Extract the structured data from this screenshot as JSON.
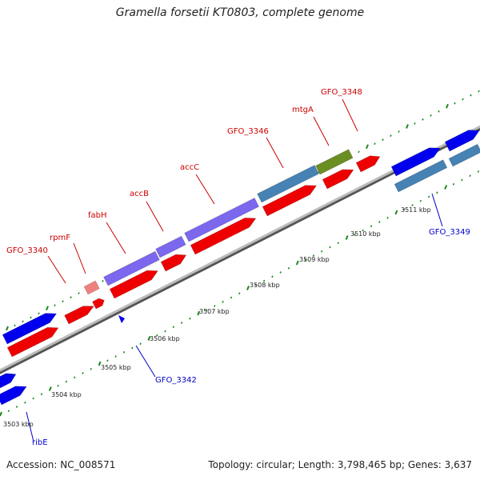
{
  "title": "Gramella forsetii KT0803, complete genome",
  "footer": {
    "accession": "Accession: NC_008571",
    "summary": "Topology: circular; Length: 3,798,465 bp; Genes: 3,637"
  },
  "colors": {
    "backbone": "#8c8c8c",
    "cds_forward": "#0000ee",
    "cds_reverse": "#ee0000",
    "gene_blue": "#4682b4",
    "gene_purple": "#7b68ee",
    "gene_olive": "#6b8e23",
    "gene_pink": "#f08080",
    "tick": "#1a8a1a",
    "label_top": "#cc0000",
    "label_bottom": "#0000cc"
  },
  "kbp_ticks": [
    "3503 kbp",
    "3504 kbp",
    "3505 kbp",
    "3506 kbp",
    "3507 kbp",
    "3508 kbp",
    "3509 kbp",
    "3510 kbp",
    "3511 kbp"
  ],
  "gene_labels_top": [
    "GFO_3340",
    "rpmF",
    "fabH",
    "accB",
    "accC",
    "GFO_3346",
    "mtgA",
    "GFO_3348"
  ],
  "gene_labels_bottom": [
    "ribE",
    "GFO_3342",
    "GFO_3349"
  ]
}
